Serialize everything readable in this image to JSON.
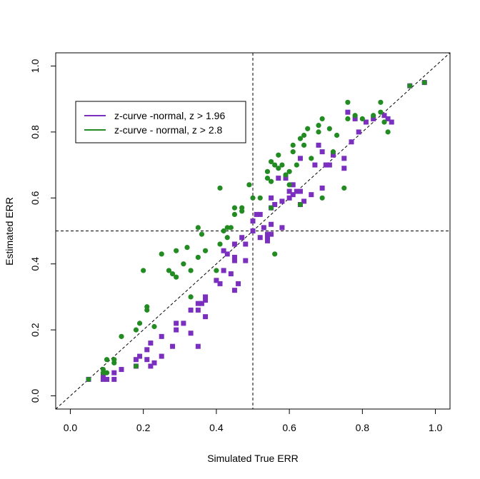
{
  "chart_data": {
    "type": "scatter",
    "title": "",
    "xlabel": "Simulated True ERR",
    "ylabel": "Estimated ERR",
    "xlim": [
      -0.04,
      1.04
    ],
    "ylim": [
      -0.04,
      1.04
    ],
    "xticks": [
      0.0,
      0.2,
      0.4,
      0.6,
      0.8,
      1.0
    ],
    "yticks": [
      0.0,
      0.2,
      0.4,
      0.6,
      0.8,
      1.0
    ],
    "xtick_labels": [
      "0.0",
      "0.2",
      "0.4",
      "0.6",
      "0.8",
      "1.0"
    ],
    "ytick_labels": [
      "0.0",
      "0.2",
      "0.4",
      "0.6",
      "0.8",
      "1.0"
    ],
    "grid": false,
    "legend_position": "top-left",
    "reference_lines": {
      "diagonal": "y = x",
      "vertical_x": 0.5,
      "horizontal_y": 0.5
    },
    "series": [
      {
        "name": "z-curve -normal, z > 1.96",
        "color": "#7B2FBE",
        "marker": "square",
        "points": [
          [
            0.05,
            0.05
          ],
          [
            0.09,
            0.05
          ],
          [
            0.1,
            0.05
          ],
          [
            0.12,
            0.05
          ],
          [
            0.09,
            0.06
          ],
          [
            0.12,
            0.07
          ],
          [
            0.14,
            0.08
          ],
          [
            0.18,
            0.09
          ],
          [
            0.22,
            0.09
          ],
          [
            0.23,
            0.1
          ],
          [
            0.21,
            0.11
          ],
          [
            0.18,
            0.11
          ],
          [
            0.19,
            0.12
          ],
          [
            0.25,
            0.12
          ],
          [
            0.21,
            0.14
          ],
          [
            0.28,
            0.15
          ],
          [
            0.35,
            0.15
          ],
          [
            0.22,
            0.16
          ],
          [
            0.25,
            0.18
          ],
          [
            0.33,
            0.19
          ],
          [
            0.29,
            0.2
          ],
          [
            0.29,
            0.22
          ],
          [
            0.31,
            0.22
          ],
          [
            0.37,
            0.24
          ],
          [
            0.33,
            0.26
          ],
          [
            0.35,
            0.26
          ],
          [
            0.36,
            0.28
          ],
          [
            0.35,
            0.28
          ],
          [
            0.37,
            0.29
          ],
          [
            0.37,
            0.3
          ],
          [
            0.45,
            0.32
          ],
          [
            0.46,
            0.34
          ],
          [
            0.41,
            0.34
          ],
          [
            0.4,
            0.35
          ],
          [
            0.44,
            0.37
          ],
          [
            0.42,
            0.38
          ],
          [
            0.48,
            0.41
          ],
          [
            0.45,
            0.41
          ],
          [
            0.45,
            0.42
          ],
          [
            0.43,
            0.43
          ],
          [
            0.42,
            0.44
          ],
          [
            0.45,
            0.46
          ],
          [
            0.47,
            0.48
          ],
          [
            0.52,
            0.48
          ],
          [
            0.54,
            0.49
          ],
          [
            0.5,
            0.5
          ],
          [
            0.53,
            0.51
          ],
          [
            0.58,
            0.51
          ],
          [
            0.5,
            0.53
          ],
          [
            0.52,
            0.55
          ],
          [
            0.51,
            0.55
          ],
          [
            0.55,
            0.52
          ],
          [
            0.54,
            0.48
          ],
          [
            0.55,
            0.49
          ],
          [
            0.54,
            0.47
          ],
          [
            0.55,
            0.57
          ],
          [
            0.56,
            0.58
          ],
          [
            0.55,
            0.6
          ],
          [
            0.58,
            0.59
          ],
          [
            0.6,
            0.6
          ],
          [
            0.61,
            0.61
          ],
          [
            0.62,
            0.62
          ],
          [
            0.63,
            0.62
          ],
          [
            0.64,
            0.59
          ],
          [
            0.66,
            0.61
          ],
          [
            0.69,
            0.63
          ],
          [
            0.7,
            0.7
          ],
          [
            0.72,
            0.73
          ],
          [
            0.75,
            0.69
          ],
          [
            0.75,
            0.72
          ],
          [
            0.77,
            0.77
          ],
          [
            0.79,
            0.8
          ],
          [
            0.81,
            0.83
          ],
          [
            0.83,
            0.84
          ],
          [
            0.86,
            0.85
          ],
          [
            0.87,
            0.84
          ],
          [
            0.88,
            0.83
          ],
          [
            0.76,
            0.86
          ],
          [
            0.78,
            0.84
          ],
          [
            0.57,
            0.66
          ],
          [
            0.59,
            0.66
          ],
          [
            0.61,
            0.64
          ],
          [
            0.63,
            0.58
          ],
          [
            0.68,
            0.76
          ],
          [
            0.69,
            0.74
          ],
          [
            0.63,
            0.72
          ],
          [
            0.67,
            0.7
          ],
          [
            0.6,
            0.62
          ],
          [
            0.71,
            0.7
          ],
          [
            0.93,
            0.94
          ],
          [
            0.97,
            0.95
          ],
          [
            0.48,
            0.46
          ]
        ]
      },
      {
        "name": "z-curve - normal, z > 2.8",
        "color": "#228B22",
        "marker": "circle",
        "points": [
          [
            0.05,
            0.05
          ],
          [
            0.09,
            0.07
          ],
          [
            0.1,
            0.07
          ],
          [
            0.09,
            0.08
          ],
          [
            0.12,
            0.1
          ],
          [
            0.12,
            0.11
          ],
          [
            0.1,
            0.11
          ],
          [
            0.14,
            0.18
          ],
          [
            0.18,
            0.2
          ],
          [
            0.19,
            0.22
          ],
          [
            0.21,
            0.26
          ],
          [
            0.21,
            0.27
          ],
          [
            0.18,
            0.09
          ],
          [
            0.23,
            0.21
          ],
          [
            0.2,
            0.38
          ],
          [
            0.25,
            0.43
          ],
          [
            0.28,
            0.37
          ],
          [
            0.29,
            0.36
          ],
          [
            0.27,
            0.38
          ],
          [
            0.29,
            0.44
          ],
          [
            0.31,
            0.4
          ],
          [
            0.33,
            0.38
          ],
          [
            0.33,
            0.3
          ],
          [
            0.32,
            0.45
          ],
          [
            0.35,
            0.51
          ],
          [
            0.35,
            0.42
          ],
          [
            0.37,
            0.44
          ],
          [
            0.36,
            0.49
          ],
          [
            0.41,
            0.46
          ],
          [
            0.4,
            0.38
          ],
          [
            0.42,
            0.5
          ],
          [
            0.43,
            0.51
          ],
          [
            0.44,
            0.51
          ],
          [
            0.45,
            0.55
          ],
          [
            0.45,
            0.57
          ],
          [
            0.47,
            0.56
          ],
          [
            0.47,
            0.57
          ],
          [
            0.43,
            0.48
          ],
          [
            0.41,
            0.63
          ],
          [
            0.49,
            0.64
          ],
          [
            0.5,
            0.6
          ],
          [
            0.52,
            0.6
          ],
          [
            0.54,
            0.66
          ],
          [
            0.54,
            0.68
          ],
          [
            0.55,
            0.65
          ],
          [
            0.55,
            0.71
          ],
          [
            0.57,
            0.73
          ],
          [
            0.56,
            0.7
          ],
          [
            0.57,
            0.69
          ],
          [
            0.59,
            0.67
          ],
          [
            0.6,
            0.68
          ],
          [
            0.61,
            0.74
          ],
          [
            0.64,
            0.79
          ],
          [
            0.65,
            0.81
          ],
          [
            0.68,
            0.82
          ],
          [
            0.69,
            0.84
          ],
          [
            0.68,
            0.8
          ],
          [
            0.71,
            0.81
          ],
          [
            0.72,
            0.74
          ],
          [
            0.73,
            0.79
          ],
          [
            0.76,
            0.84
          ],
          [
            0.76,
            0.89
          ],
          [
            0.78,
            0.85
          ],
          [
            0.8,
            0.84
          ],
          [
            0.83,
            0.85
          ],
          [
            0.85,
            0.86
          ],
          [
            0.86,
            0.83
          ],
          [
            0.87,
            0.8
          ],
          [
            0.85,
            0.89
          ],
          [
            0.75,
            0.63
          ],
          [
            0.69,
            0.6
          ],
          [
            0.63,
            0.58
          ],
          [
            0.56,
            0.43
          ],
          [
            0.55,
            0.57
          ],
          [
            0.6,
            0.64
          ],
          [
            0.62,
            0.7
          ],
          [
            0.58,
            0.7
          ],
          [
            0.66,
            0.72
          ],
          [
            0.61,
            0.76
          ],
          [
            0.93,
            0.94
          ],
          [
            0.97,
            0.95
          ],
          [
            0.63,
            0.78
          ],
          [
            0.64,
            0.76
          ]
        ]
      }
    ]
  }
}
